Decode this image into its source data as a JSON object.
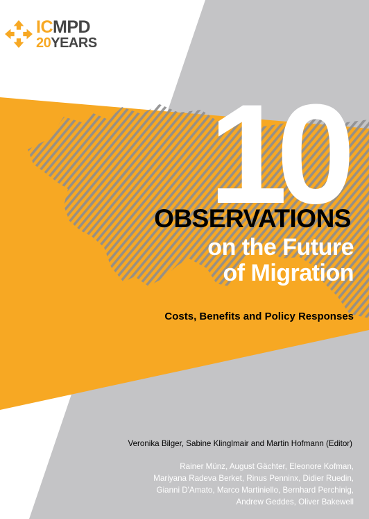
{
  "colors": {
    "orange": "#f7a823",
    "grey": "#c4c4c6",
    "dark_text": "#454545",
    "white": "#ffffff"
  },
  "logo": {
    "part1": "IC",
    "part2": "MPD",
    "part3": "20",
    "part4": "YEARS",
    "icon": "four-arrows-icon"
  },
  "cover": {
    "big_number": "10",
    "title": "OBSERVATIONS",
    "subtitle_line1": "on the Future",
    "subtitle_line2": "of Migration",
    "tagline": "Costs, Benefits and Policy Responses",
    "authors": "Veronika Bilger, Sabine Klinglmair and Martin Hofmann (Editor)",
    "contributors": [
      "Rainer Münz, August Gächter, Eleonore Kofman,",
      "Mariyana Radeva Berket, Rinus Penninx, Didier Ruedin,",
      "Gianni D'Amato, Marco Martiniello, Bernhard Perchinig,",
      "Andrew Geddes, Oliver Bakewell"
    ]
  }
}
